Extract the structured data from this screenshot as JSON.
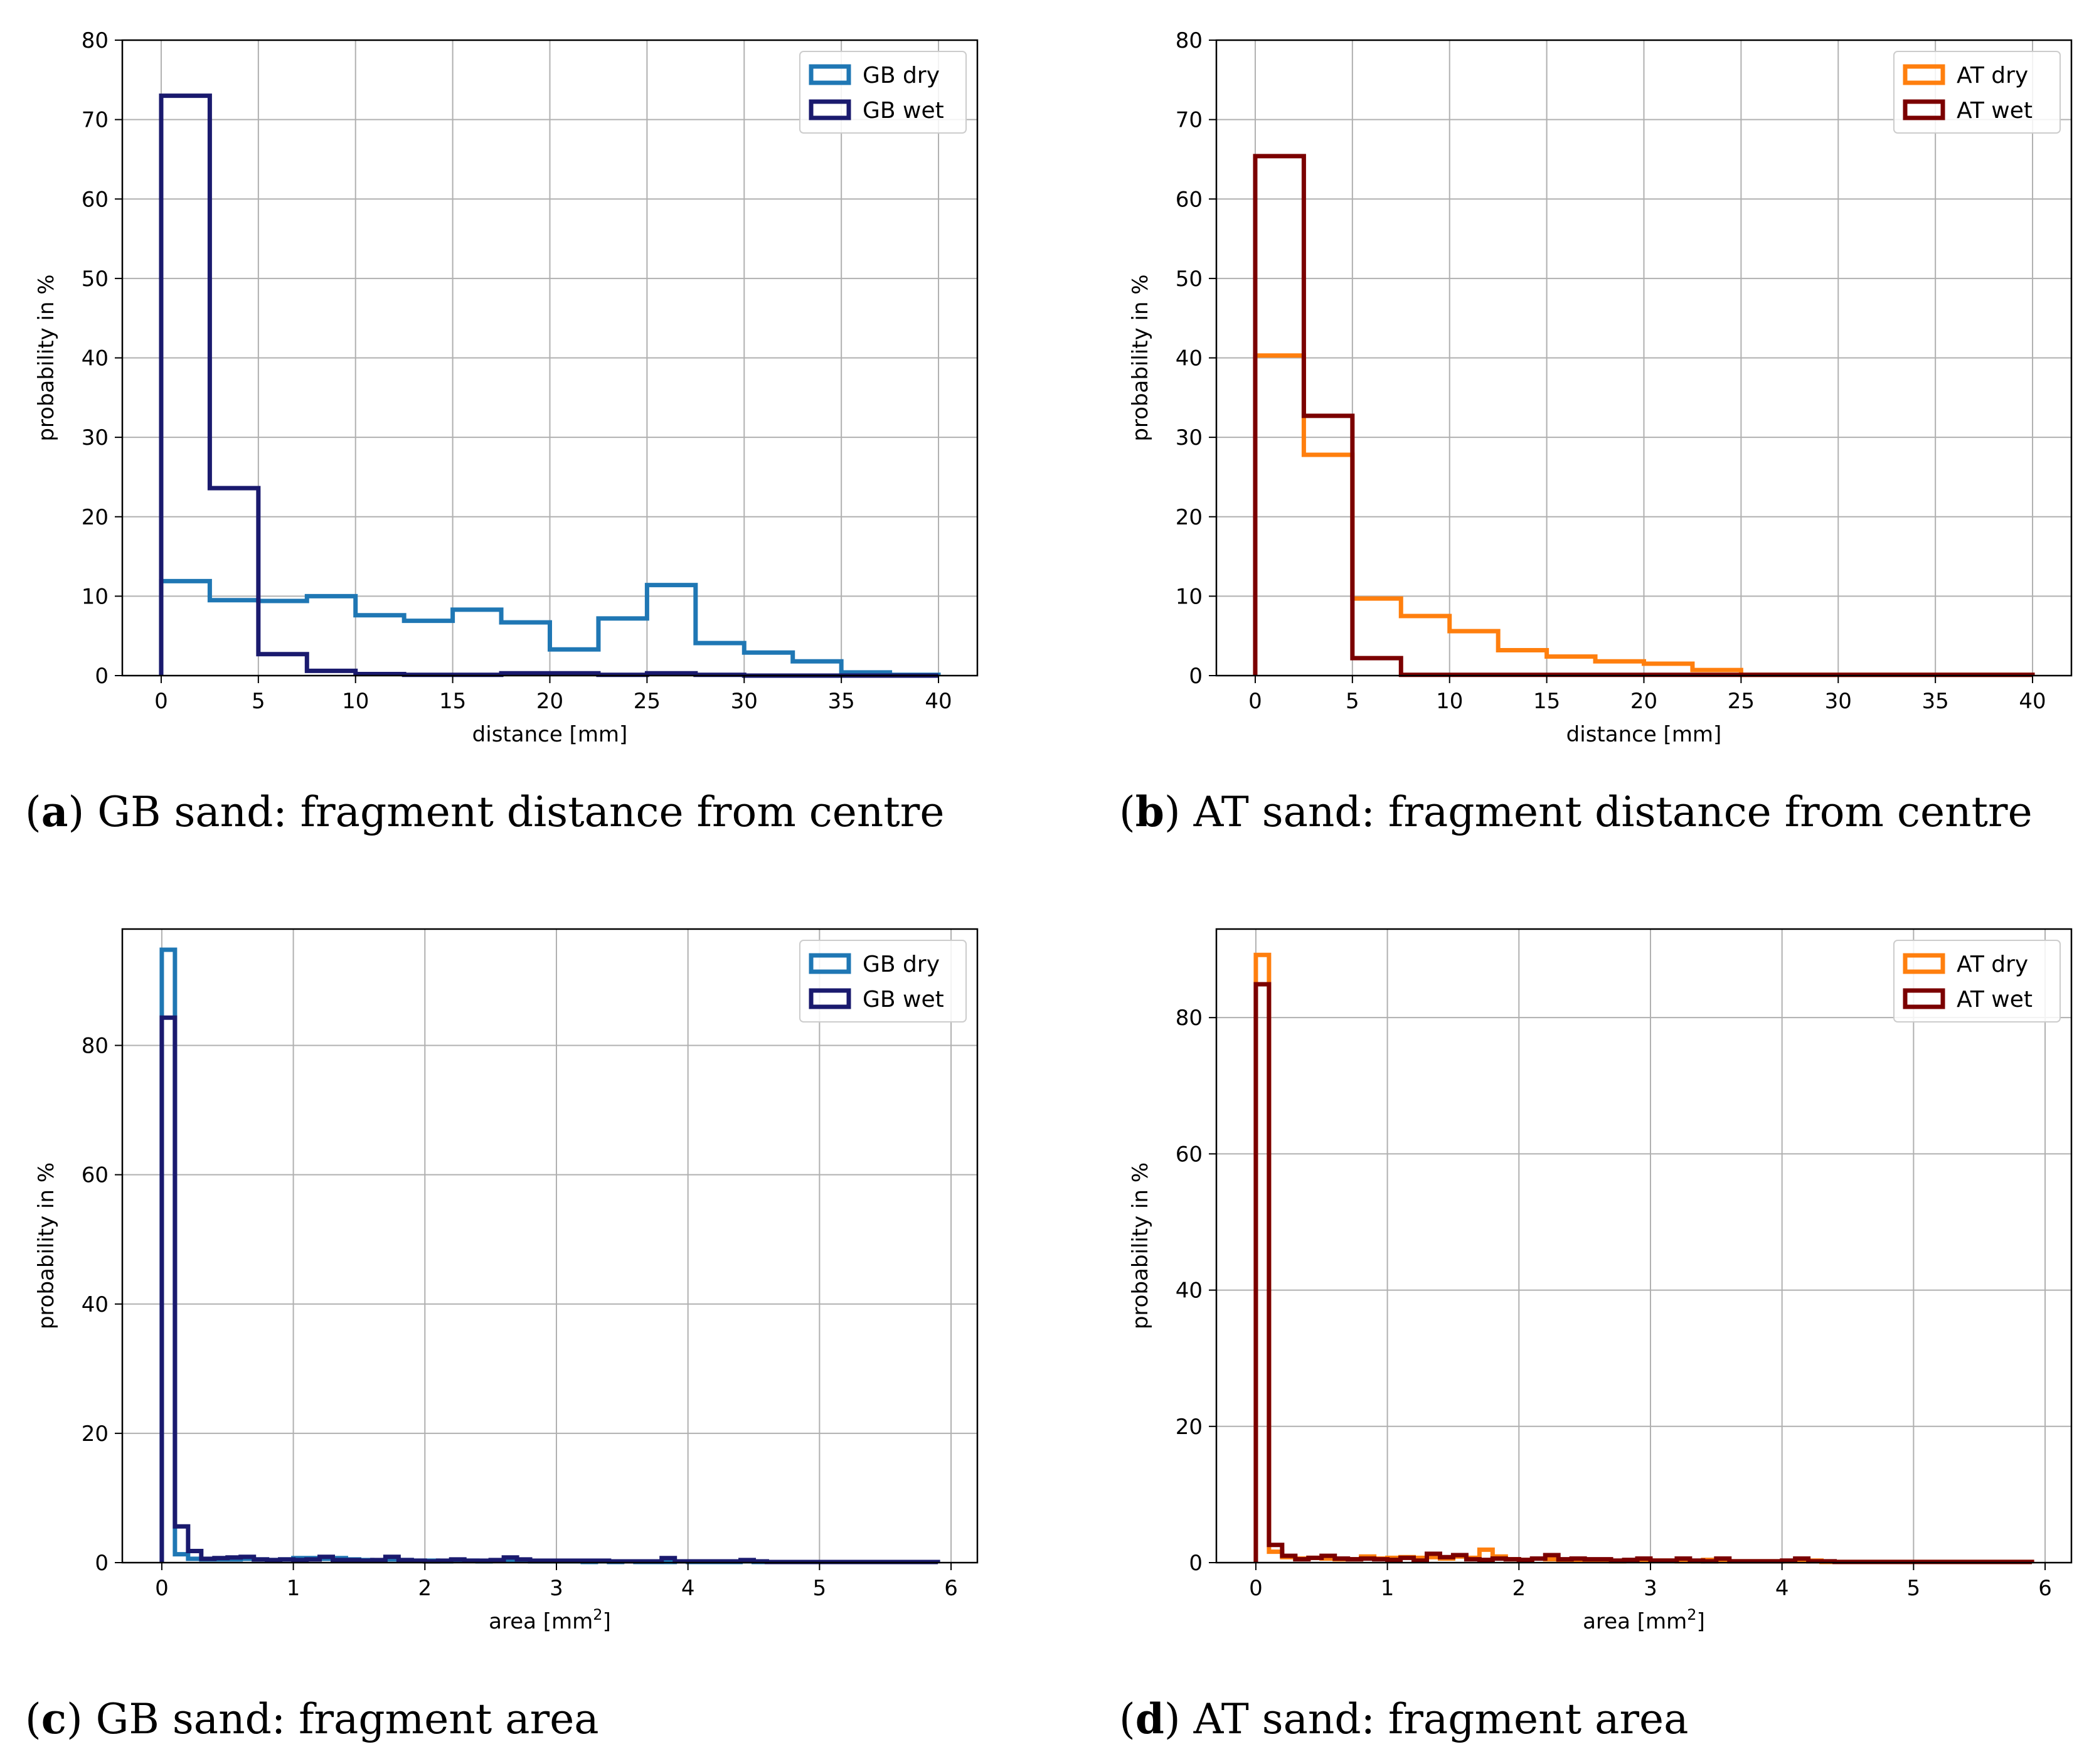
{
  "chart_data": [
    {
      "id": "a",
      "type": "histogram-step",
      "caption_letter": "a",
      "caption_text": "GB sand: fragment distance from centre",
      "xlabel": "distance [mm]",
      "ylabel": "probability in %",
      "xlim": [
        -2,
        42
      ],
      "ylim": [
        0,
        80
      ],
      "xticks": [
        0,
        5,
        10,
        15,
        20,
        25,
        30,
        35,
        40
      ],
      "yticks": [
        0,
        10,
        20,
        30,
        40,
        50,
        60,
        70,
        80
      ],
      "legend_position": "top-right",
      "series": [
        {
          "name": "GB dry",
          "color": "#1f77b4",
          "bin_width": 2.5,
          "start": 0,
          "values": [
            11.9,
            9.5,
            9.4,
            10.0,
            7.6,
            6.9,
            8.3,
            6.7,
            3.3,
            7.2,
            11.4,
            4.1,
            2.9,
            1.8,
            0.4,
            0.1
          ]
        },
        {
          "name": "GB wet",
          "color": "#1a1a6e",
          "bin_width": 2.5,
          "start": 0,
          "values": [
            73.0,
            23.6,
            2.7,
            0.6,
            0.2,
            0.1,
            0.1,
            0.3,
            0.3,
            0.1,
            0.3,
            0.1,
            0.0,
            0.0,
            0.0,
            0.0
          ]
        }
      ]
    },
    {
      "id": "b",
      "type": "histogram-step",
      "caption_letter": "b",
      "caption_text": "AT sand: fragment distance from centre",
      "xlabel": "distance [mm]",
      "ylabel": "probability in %",
      "xlim": [
        -2,
        42
      ],
      "ylim": [
        0,
        80
      ],
      "xticks": [
        0,
        5,
        10,
        15,
        20,
        25,
        30,
        35,
        40
      ],
      "yticks": [
        0,
        10,
        20,
        30,
        40,
        50,
        60,
        70,
        80
      ],
      "legend_position": "top-right",
      "series": [
        {
          "name": "AT dry",
          "color": "#ff7f0e",
          "bin_width": 2.5,
          "start": 0,
          "values": [
            40.3,
            27.8,
            9.7,
            7.5,
            5.6,
            3.2,
            2.4,
            1.8,
            1.5,
            0.7,
            0.1,
            0.1,
            0.1,
            0.1,
            0.1,
            0.1
          ]
        },
        {
          "name": "AT wet",
          "color": "#7b0000",
          "bin_width": 2.5,
          "start": 0,
          "values": [
            65.4,
            32.7,
            2.2,
            0.1,
            0.1,
            0.1,
            0.1,
            0.1,
            0.1,
            0.1,
            0.1,
            0.1,
            0.1,
            0.1,
            0.1,
            0.1
          ]
        }
      ]
    },
    {
      "id": "c",
      "type": "histogram-step",
      "caption_letter": "c",
      "caption_text": "GB sand: fragment area",
      "xlabel": "area [mm",
      "xlabel_sup": "2",
      "xlabel_end": "]",
      "ylabel": "probability in %",
      "xlim": [
        -0.3,
        6.2
      ],
      "ylim": [
        0,
        98
      ],
      "xticks": [
        0,
        1,
        2,
        3,
        4,
        5,
        6
      ],
      "yticks": [
        0,
        20,
        40,
        60,
        80
      ],
      "legend_position": "top-right",
      "series": [
        {
          "name": "GB dry",
          "color": "#1f77b4",
          "bin_width": 0.1,
          "start": 0,
          "values": [
            94.8,
            1.3,
            0.6,
            0.5,
            0.5,
            0.5,
            0.6,
            0.5,
            0.4,
            0.5,
            0.7,
            0.7,
            0.6,
            0.7,
            0.5,
            0.4,
            0.3,
            0.5,
            0.4,
            0.3,
            0.3,
            0.2,
            0.4,
            0.3,
            0.2,
            0.3,
            0.3,
            0.3,
            0.2,
            0.2,
            0.2,
            0.2,
            0.1,
            0.2,
            0.1,
            0.2,
            0.1,
            0.1,
            0.1,
            0.2,
            0.1,
            0.1,
            0.1,
            0.1,
            0.2,
            0.1,
            0.1,
            0.1,
            0.1,
            0.1,
            0.1,
            0.1,
            0.1,
            0.1,
            0.1,
            0.1,
            0.1,
            0.1,
            0.1
          ]
        },
        {
          "name": "GB wet",
          "color": "#1a1a6e",
          "bin_width": 0.1,
          "start": 0,
          "values": [
            84.3,
            5.6,
            1.8,
            0.6,
            0.7,
            0.8,
            0.9,
            0.5,
            0.4,
            0.5,
            0.4,
            0.5,
            0.9,
            0.4,
            0.4,
            0.3,
            0.4,
            0.9,
            0.4,
            0.3,
            0.2,
            0.3,
            0.5,
            0.3,
            0.3,
            0.4,
            0.8,
            0.5,
            0.3,
            0.3,
            0.3,
            0.3,
            0.3,
            0.3,
            0.2,
            0.2,
            0.2,
            0.2,
            0.7,
            0.2,
            0.2,
            0.2,
            0.2,
            0.2,
            0.4,
            0.2,
            0.1,
            0.1,
            0.1,
            0.1,
            0.1,
            0.1,
            0.1,
            0.1,
            0.1,
            0.1,
            0.1,
            0.1,
            0.1
          ]
        }
      ]
    },
    {
      "id": "d",
      "type": "histogram-step",
      "caption_letter": "d",
      "caption_text": "AT sand: fragment area",
      "xlabel": "area [mm",
      "xlabel_sup": "2",
      "xlabel_end": "]",
      "ylabel": "probability in %",
      "xlim": [
        -0.3,
        6.2
      ],
      "ylim": [
        0,
        93
      ],
      "xticks": [
        0,
        1,
        2,
        3,
        4,
        5,
        6
      ],
      "yticks": [
        0,
        20,
        40,
        60,
        80
      ],
      "legend_position": "top-right",
      "series": [
        {
          "name": "AT dry",
          "color": "#ff7f0e",
          "bin_width": 0.1,
          "start": 0,
          "values": [
            89.2,
            1.6,
            0.8,
            0.6,
            0.7,
            0.6,
            0.5,
            0.5,
            0.9,
            0.6,
            0.7,
            0.8,
            0.7,
            0.8,
            0.6,
            0.9,
            0.7,
            1.9,
            0.9,
            0.5,
            0.4,
            0.6,
            0.5,
            0.4,
            0.3,
            0.4,
            0.3,
            0.2,
            0.3,
            0.4,
            0.3,
            0.3,
            0.2,
            0.2,
            0.4,
            0.2,
            0.2,
            0.2,
            0.2,
            0.2,
            0.2,
            0.2,
            0.3,
            0.1,
            0.1,
            0.1,
            0.1,
            0.1,
            0.1,
            0.1,
            0.1,
            0.1,
            0.1,
            0.1,
            0.1,
            0.1,
            0.1,
            0.1,
            0.1
          ]
        },
        {
          "name": "AT wet",
          "color": "#7b0000",
          "bin_width": 0.1,
          "start": 0,
          "values": [
            84.9,
            2.6,
            1.0,
            0.5,
            0.7,
            1.0,
            0.6,
            0.5,
            0.6,
            0.5,
            0.4,
            0.7,
            0.3,
            1.3,
            0.8,
            1.1,
            0.5,
            0.4,
            0.6,
            0.5,
            0.4,
            0.6,
            1.1,
            0.5,
            0.6,
            0.5,
            0.5,
            0.3,
            0.4,
            0.6,
            0.3,
            0.3,
            0.6,
            0.3,
            0.2,
            0.6,
            0.2,
            0.2,
            0.2,
            0.2,
            0.3,
            0.6,
            0.2,
            0.2,
            0.1,
            0.1,
            0.1,
            0.1,
            0.1,
            0.1,
            0.1,
            0.1,
            0.1,
            0.1,
            0.1,
            0.1,
            0.1,
            0.1,
            0.1
          ]
        }
      ]
    }
  ]
}
